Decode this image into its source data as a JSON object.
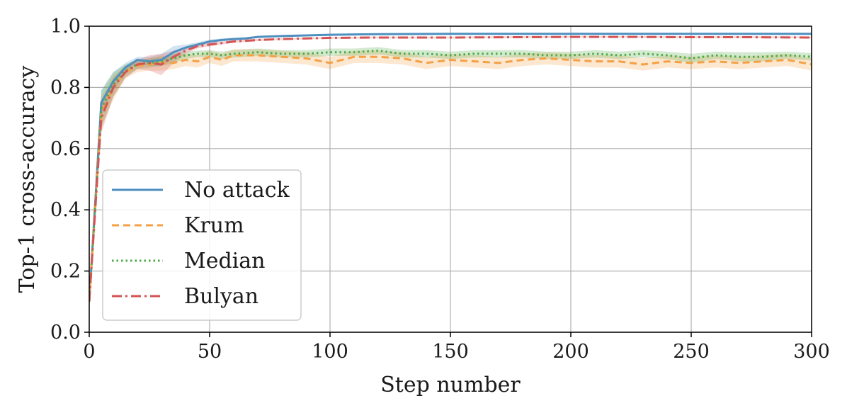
{
  "chart_data": {
    "type": "line",
    "xlabel": "Step number",
    "ylabel": "Top-1 cross-accuracy",
    "xlim": [
      0,
      300
    ],
    "ylim": [
      0.0,
      1.0
    ],
    "xticks": [
      0,
      50,
      100,
      150,
      200,
      250,
      300
    ],
    "yticks": [
      0.0,
      0.2,
      0.4,
      0.6,
      0.8,
      1.0
    ],
    "xtick_labels": [
      "0",
      "50",
      "100",
      "150",
      "200",
      "250",
      "300"
    ],
    "ytick_labels": [
      "0.0",
      "0.2",
      "0.4",
      "0.6",
      "0.8",
      "1.0"
    ],
    "grid": true,
    "legend_position": "center-left",
    "series": [
      {
        "name": "No attack",
        "color": "#4e8fbf",
        "style": "solid",
        "x": [
          0,
          5,
          10,
          15,
          20,
          25,
          30,
          35,
          40,
          45,
          50,
          55,
          60,
          65,
          70,
          80,
          90,
          100,
          120,
          150,
          200,
          250,
          300
        ],
        "y": [
          0.1,
          0.75,
          0.82,
          0.865,
          0.89,
          0.885,
          0.89,
          0.915,
          0.93,
          0.94,
          0.95,
          0.955,
          0.958,
          0.96,
          0.965,
          0.968,
          0.97,
          0.972,
          0.974,
          0.975,
          0.975,
          0.975,
          0.975
        ],
        "band": [
          0.0,
          0.04,
          0.03,
          0.015,
          0.01,
          0.015,
          0.02,
          0.02,
          0.01,
          0.008,
          0.006,
          0.005,
          0.004,
          0.004,
          0.003,
          0.003,
          0.003,
          0.003,
          0.002,
          0.002,
          0.002,
          0.002,
          0.002
        ]
      },
      {
        "name": "Krum",
        "color": "#f5a044",
        "style": "dashed",
        "x": [
          0,
          5,
          10,
          15,
          20,
          25,
          30,
          35,
          40,
          45,
          50,
          55,
          60,
          70,
          80,
          90,
          100,
          110,
          120,
          130,
          140,
          150,
          160,
          170,
          180,
          190,
          200,
          210,
          220,
          230,
          240,
          250,
          260,
          270,
          280,
          290,
          300
        ],
        "y": [
          0.1,
          0.72,
          0.8,
          0.85,
          0.87,
          0.875,
          0.88,
          0.88,
          0.89,
          0.885,
          0.9,
          0.89,
          0.905,
          0.905,
          0.9,
          0.895,
          0.88,
          0.9,
          0.9,
          0.895,
          0.88,
          0.89,
          0.885,
          0.88,
          0.89,
          0.895,
          0.89,
          0.885,
          0.885,
          0.875,
          0.885,
          0.88,
          0.885,
          0.88,
          0.885,
          0.89,
          0.875
        ],
        "band": [
          0.0,
          0.05,
          0.04,
          0.02,
          0.02,
          0.02,
          0.025,
          0.02,
          0.02,
          0.02,
          0.02,
          0.02,
          0.02,
          0.02,
          0.02,
          0.02,
          0.02,
          0.02,
          0.02,
          0.02,
          0.02,
          0.02,
          0.02,
          0.02,
          0.02,
          0.02,
          0.02,
          0.02,
          0.02,
          0.02,
          0.02,
          0.02,
          0.02,
          0.02,
          0.02,
          0.02,
          0.02
        ]
      },
      {
        "name": "Median",
        "color": "#4eaa48",
        "style": "dotted",
        "x": [
          0,
          5,
          10,
          15,
          20,
          25,
          30,
          35,
          40,
          45,
          50,
          55,
          60,
          70,
          80,
          90,
          100,
          110,
          120,
          130,
          140,
          150,
          160,
          170,
          180,
          190,
          200,
          210,
          220,
          230,
          240,
          250,
          260,
          270,
          280,
          290,
          300
        ],
        "y": [
          0.1,
          0.73,
          0.81,
          0.855,
          0.875,
          0.88,
          0.885,
          0.895,
          0.905,
          0.91,
          0.91,
          0.905,
          0.91,
          0.915,
          0.91,
          0.91,
          0.915,
          0.915,
          0.92,
          0.91,
          0.91,
          0.905,
          0.91,
          0.91,
          0.91,
          0.905,
          0.905,
          0.91,
          0.905,
          0.91,
          0.905,
          0.895,
          0.905,
          0.9,
          0.9,
          0.905,
          0.9
        ],
        "band": [
          0.0,
          0.06,
          0.04,
          0.02,
          0.015,
          0.015,
          0.015,
          0.015,
          0.012,
          0.01,
          0.012,
          0.012,
          0.012,
          0.012,
          0.012,
          0.012,
          0.012,
          0.012,
          0.012,
          0.012,
          0.012,
          0.012,
          0.012,
          0.012,
          0.012,
          0.012,
          0.012,
          0.012,
          0.012,
          0.012,
          0.012,
          0.015,
          0.012,
          0.015,
          0.015,
          0.012,
          0.012
        ]
      },
      {
        "name": "Bulyan",
        "color": "#d45454",
        "style": "dashdot",
        "x": [
          0,
          5,
          10,
          15,
          20,
          25,
          30,
          35,
          40,
          45,
          50,
          55,
          60,
          70,
          80,
          90,
          100,
          120,
          150,
          175,
          200,
          225,
          250,
          275,
          300
        ],
        "y": [
          0.1,
          0.7,
          0.8,
          0.85,
          0.875,
          0.88,
          0.875,
          0.9,
          0.92,
          0.935,
          0.94,
          0.945,
          0.95,
          0.955,
          0.958,
          0.96,
          0.962,
          0.963,
          0.963,
          0.964,
          0.965,
          0.965,
          0.964,
          0.964,
          0.963
        ],
        "band": [
          0.0,
          0.05,
          0.03,
          0.02,
          0.015,
          0.025,
          0.035,
          0.02,
          0.01,
          0.008,
          0.006,
          0.005,
          0.004,
          0.004,
          0.003,
          0.003,
          0.003,
          0.003,
          0.003,
          0.003,
          0.003,
          0.003,
          0.003,
          0.003,
          0.003
        ]
      }
    ]
  }
}
